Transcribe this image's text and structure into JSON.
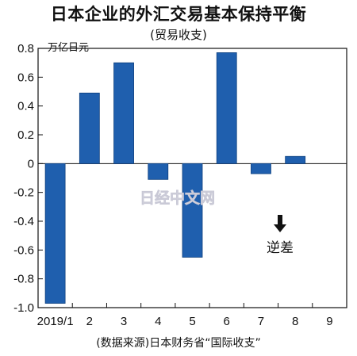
{
  "title": "日本企业的外汇交易基本保持平衡",
  "subtitle": "(贸易收支)",
  "source": "(数据来源)日本财务省“国际收支”",
  "watermark": "日经中文网",
  "chart_data": {
    "type": "bar",
    "unit_label": "万亿日元",
    "categories": [
      "2019/1",
      "2",
      "3",
      "4",
      "5",
      "6",
      "7",
      "8",
      "9"
    ],
    "values": [
      -0.97,
      0.49,
      0.7,
      -0.11,
      -0.65,
      0.77,
      -0.07,
      0.05,
      null
    ],
    "ylim": [
      -1.0,
      0.8
    ],
    "yticks": [
      0.8,
      0.6,
      0.4,
      0.2,
      0,
      -0.2,
      -0.4,
      -0.6,
      -0.8,
      -1.0
    ],
    "ytick_labels": [
      "0.8",
      "0.6",
      "0.4",
      "0.2",
      "0",
      "-0.2",
      "-0.4",
      "-0.6",
      "-0.8",
      "-1.0"
    ],
    "annotation": "逆差",
    "bar_color": "#1f5fae",
    "grid": false
  }
}
